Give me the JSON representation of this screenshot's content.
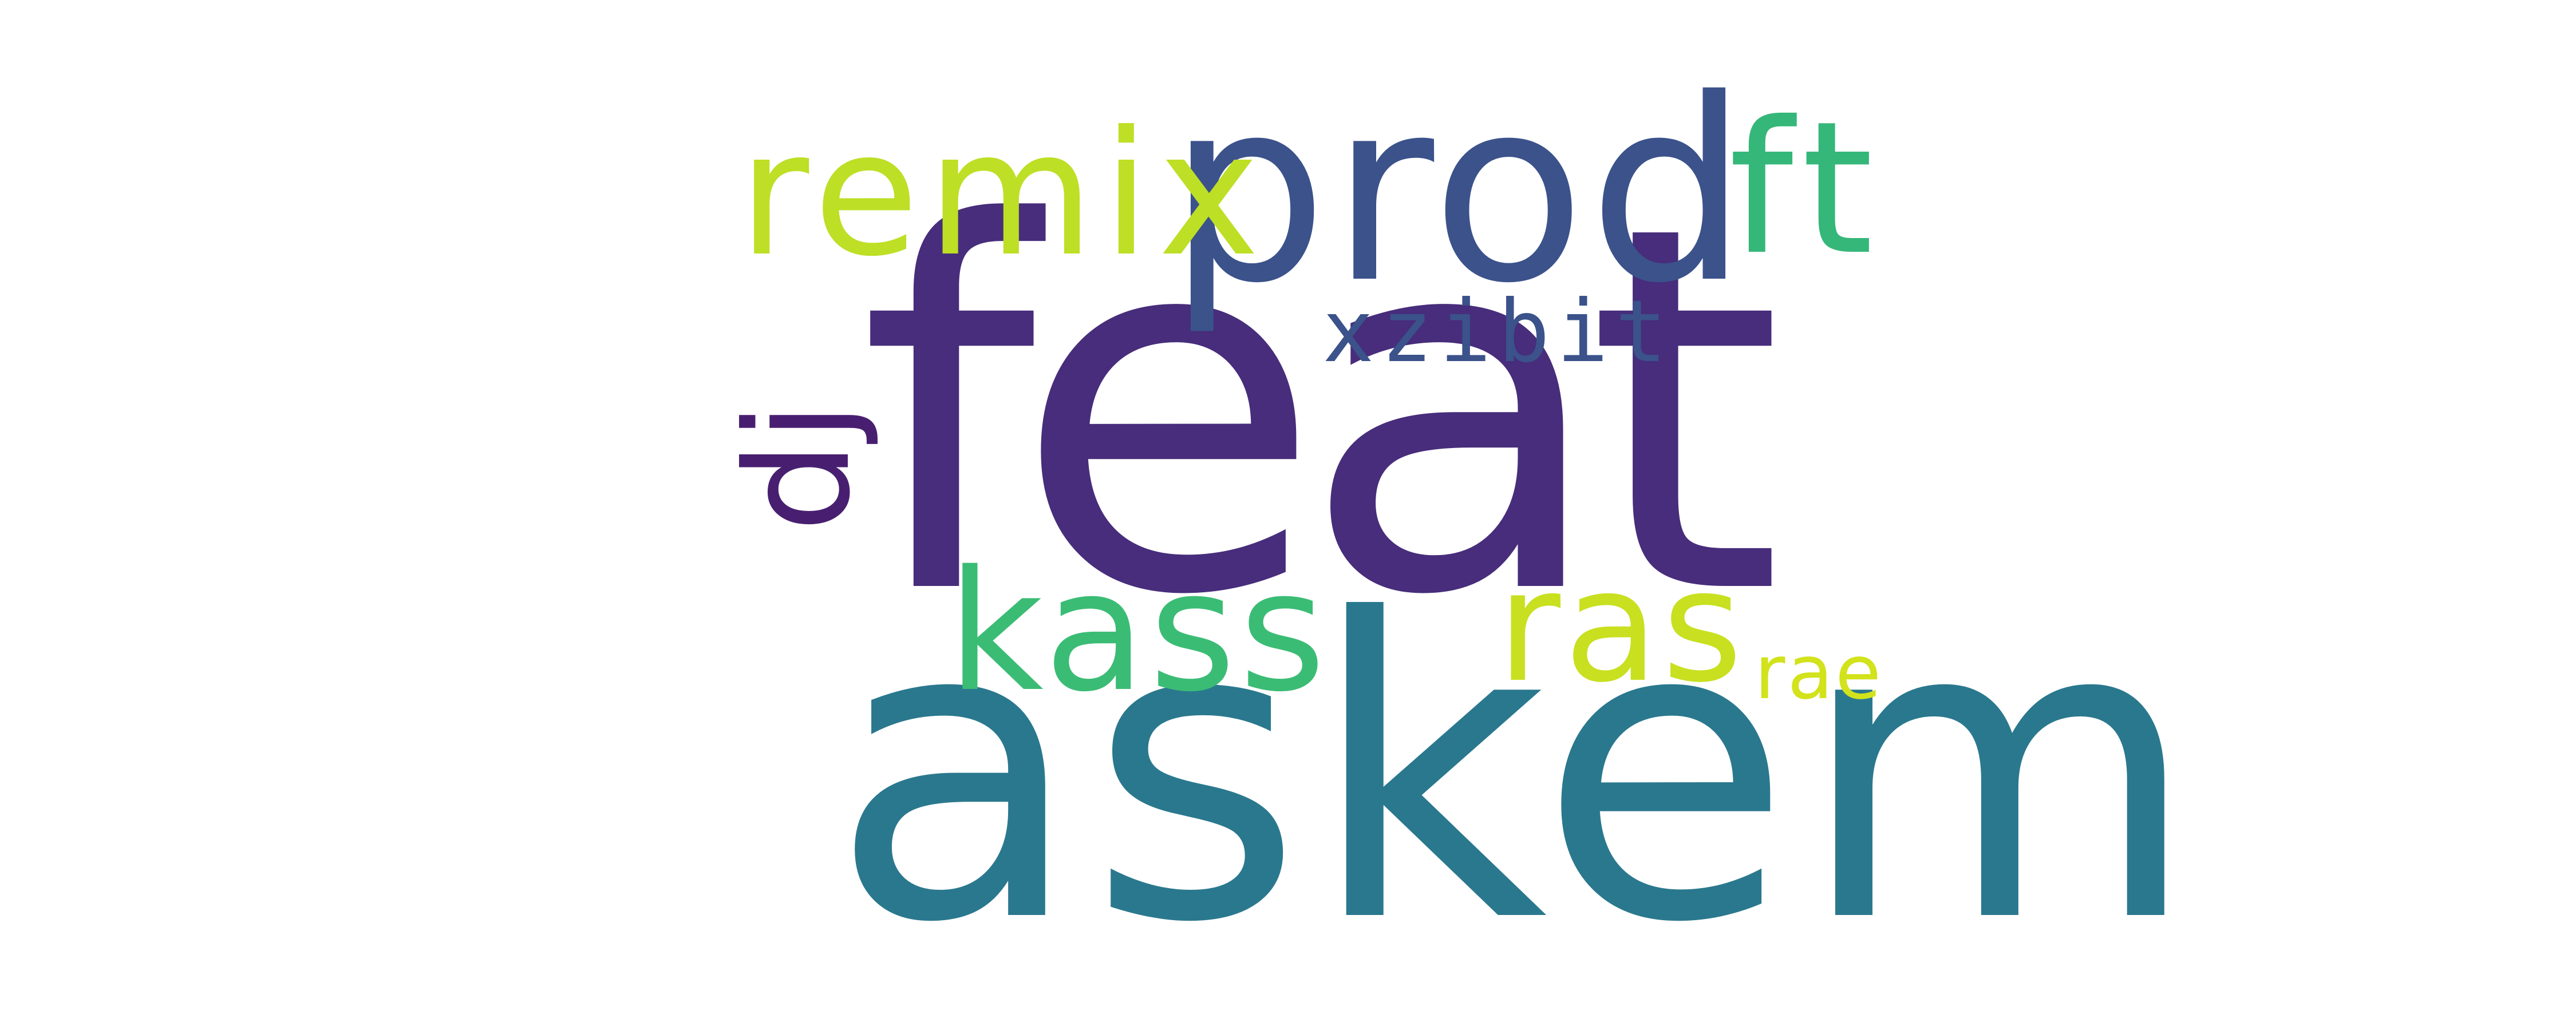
{
  "word_cloud": {
    "words": [
      {
        "id": "feat",
        "text": "feat",
        "color": "#472D7B",
        "orientation": "horizontal"
      },
      {
        "id": "askem",
        "text": "askem",
        "color": "#2A788E",
        "orientation": "horizontal"
      },
      {
        "id": "prod",
        "text": "prod",
        "color": "#3B528B",
        "orientation": "horizontal"
      },
      {
        "id": "remix",
        "text": "remix",
        "color": "#BDDF26",
        "orientation": "horizontal"
      },
      {
        "id": "ft",
        "text": "ft",
        "color": "#35B779",
        "orientation": "horizontal"
      },
      {
        "id": "kass",
        "text": "kass",
        "color": "#3BBC75",
        "orientation": "horizontal"
      },
      {
        "id": "ras",
        "text": "ras",
        "color": "#C8E020",
        "orientation": "horizontal"
      },
      {
        "id": "rae",
        "text": "rae",
        "color": "#D2E21B",
        "orientation": "horizontal"
      },
      {
        "id": "xzibit",
        "text": "xzibit",
        "color": "#3B528B",
        "orientation": "horizontal"
      },
      {
        "id": "dj",
        "text": "dj",
        "color": "#481F70",
        "orientation": "vertical"
      }
    ]
  }
}
